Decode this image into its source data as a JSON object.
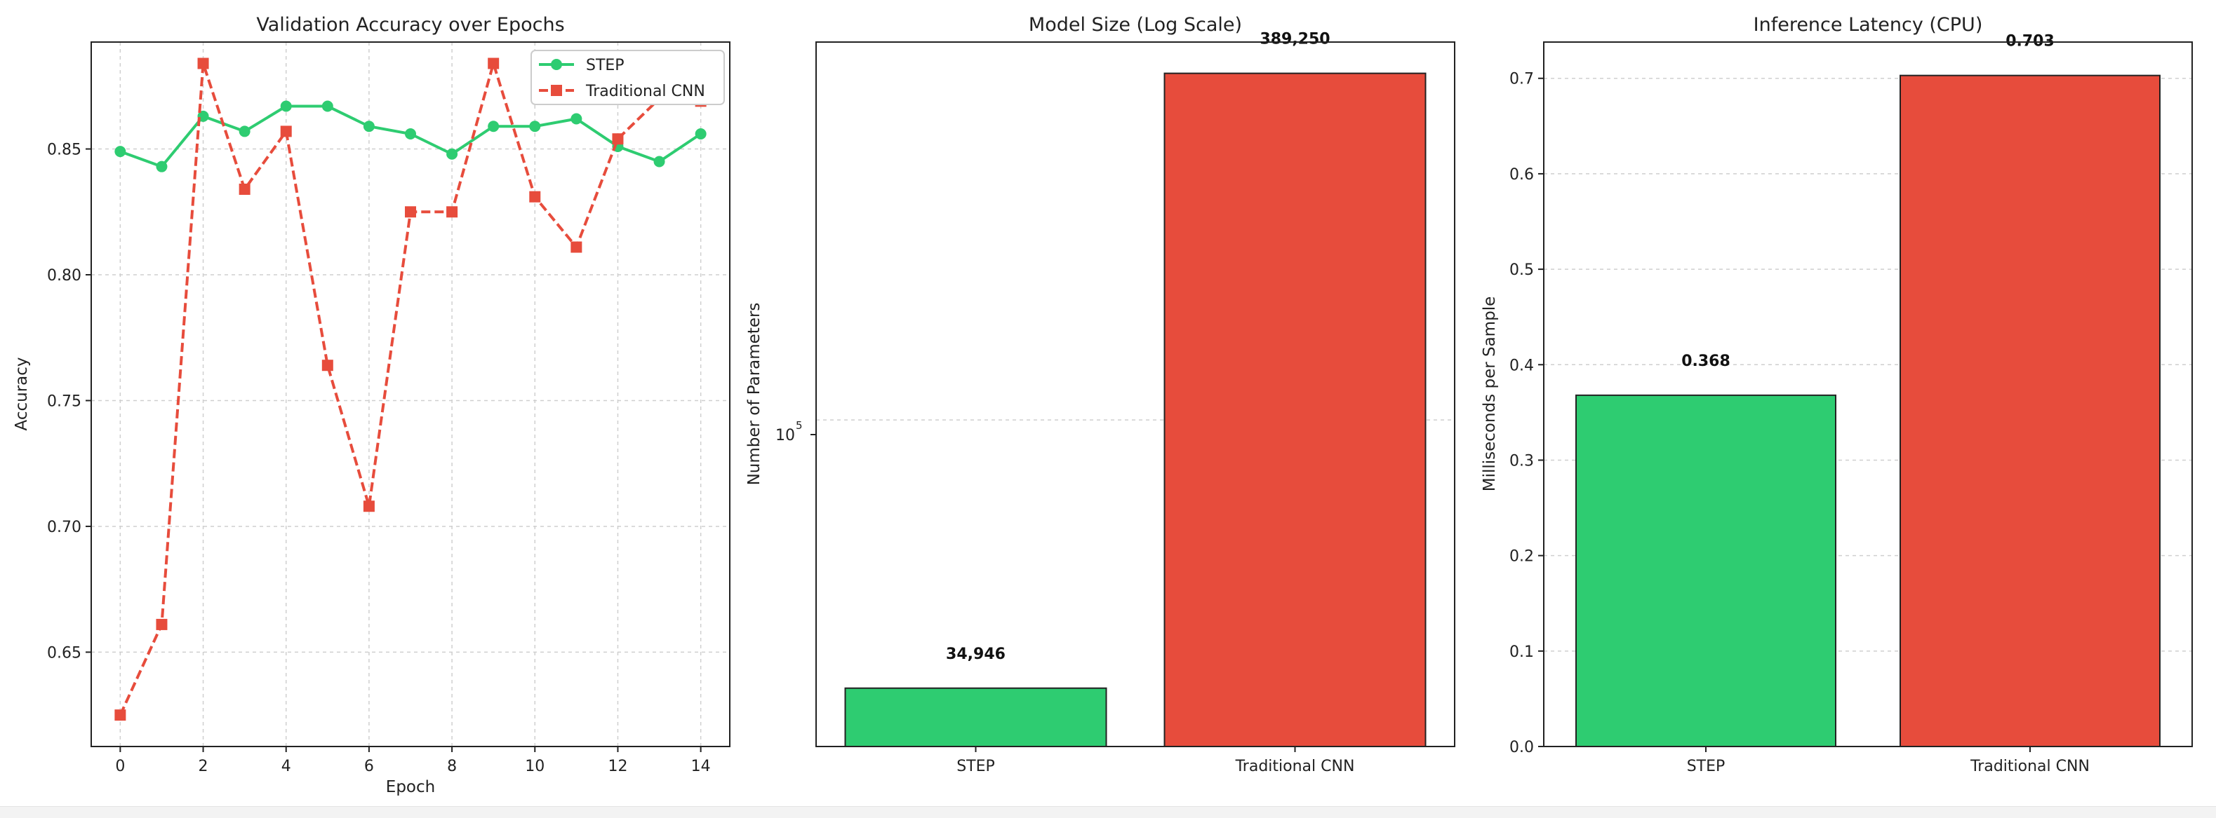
{
  "chart_data": [
    {
      "type": "line",
      "title": "Validation Accuracy over Epochs",
      "xlabel": "Epoch",
      "ylabel": "Accuracy",
      "xlim": [
        -0.7,
        14.7
      ],
      "ylim": [
        0.6125,
        0.8925
      ],
      "xticks": [
        0,
        2,
        4,
        6,
        8,
        10,
        12,
        14
      ],
      "yticks": [
        0.65,
        0.7,
        0.75,
        0.8,
        0.85
      ],
      "grid": true,
      "legend_position": "top-right",
      "x": [
        0,
        1,
        2,
        3,
        4,
        5,
        6,
        7,
        8,
        9,
        10,
        11,
        12,
        13,
        14
      ],
      "series": [
        {
          "name": "STEP",
          "color": "#2ecc71",
          "line_style": "solid",
          "marker": "circle",
          "values": [
            0.849,
            0.843,
            0.863,
            0.857,
            0.867,
            0.867,
            0.859,
            0.856,
            0.848,
            0.859,
            0.859,
            0.862,
            0.851,
            0.845,
            0.856
          ]
        },
        {
          "name": "Traditional CNN",
          "color": "#e74c3c",
          "line_style": "dashed",
          "marker": "square",
          "values": [
            0.625,
            0.661,
            0.884,
            0.834,
            0.857,
            0.764,
            0.708,
            0.825,
            0.825,
            0.884,
            0.831,
            0.811,
            0.854,
            0.87,
            0.869
          ]
        }
      ]
    },
    {
      "type": "bar",
      "title": "Model Size (Log Scale)",
      "xlabel": "",
      "ylabel": "Number of Parameters",
      "yscale": "log",
      "ylim": [
        27800,
        440000
      ],
      "ytick_base": "10",
      "ytick_exponent": "5",
      "grid": true,
      "categories": [
        "STEP",
        "Traditional CNN"
      ],
      "values": [
        34946,
        389250
      ],
      "value_labels": [
        "34,946",
        "389,250"
      ],
      "colors": [
        "#2ecc71",
        "#e74c3c"
      ]
    },
    {
      "type": "bar",
      "title": "Inference Latency (CPU)",
      "xlabel": "",
      "ylabel": "Milliseconds per Sample",
      "ylim": [
        0,
        0.738
      ],
      "yticks": [
        0.0,
        0.1,
        0.2,
        0.3,
        0.4,
        0.5,
        0.6,
        0.7
      ],
      "grid": true,
      "categories": [
        "STEP",
        "Traditional CNN"
      ],
      "values": [
        0.368,
        0.703
      ],
      "value_labels": [
        "0.368",
        "0.703"
      ],
      "colors": [
        "#2ecc71",
        "#e74c3c"
      ]
    }
  ]
}
